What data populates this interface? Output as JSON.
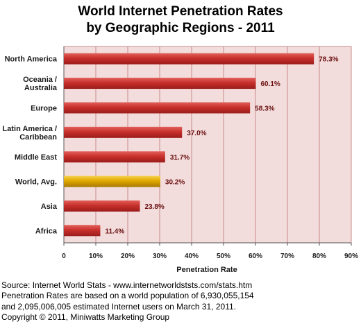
{
  "chart_data": {
    "type": "bar",
    "orientation": "horizontal",
    "title": [
      "World Internet Penetration Rates",
      "by Geographic Regions - 2011"
    ],
    "categories": [
      [
        "North America"
      ],
      [
        "Oceania  /",
        "Australia"
      ],
      [
        "Europe"
      ],
      [
        "Latin America /",
        "Caribbean"
      ],
      [
        "Middle East"
      ],
      [
        "World, Avg."
      ],
      [
        "Asia"
      ],
      [
        "Africa"
      ]
    ],
    "values": [
      78.3,
      60.1,
      58.3,
      37.0,
      31.7,
      30.2,
      23.8,
      11.4
    ],
    "value_labels": [
      "78.3%",
      "60.1%",
      "58.3%",
      "37.0%",
      "31.7%",
      "30.2%",
      "23.8%",
      "11.4%"
    ],
    "highlight_index": 5,
    "xlabel": "Penetration Rate",
    "ylabel": "",
    "xlim": [
      0,
      90
    ],
    "x_ticks": [
      "0",
      "10%",
      "20%",
      "30%",
      "40%",
      "50%",
      "60%",
      "70%",
      "80%",
      "90%"
    ],
    "grid": true,
    "colors": {
      "bar": "#c8302c",
      "bar_dark": "#9a1c1a",
      "bar_light": "#e2605a",
      "highlight": "#e0a800",
      "highlight_dark": "#a87800",
      "highlight_light": "#f6d24a",
      "plot_bg": "#f2dcdc",
      "grid": "#c98a8a",
      "axis": "#555555"
    }
  },
  "footer": {
    "lines": [
      "Source: Internet World Stats - www.internetworldststs.com/stats.htm",
      "Penetration Rates are based on a world population of 6,930,055,154",
      "and 2,095,006,005 estimated Internet users on March 31, 2011.",
      "Copyright © 2011, Miniwatts Marketing Group"
    ]
  }
}
